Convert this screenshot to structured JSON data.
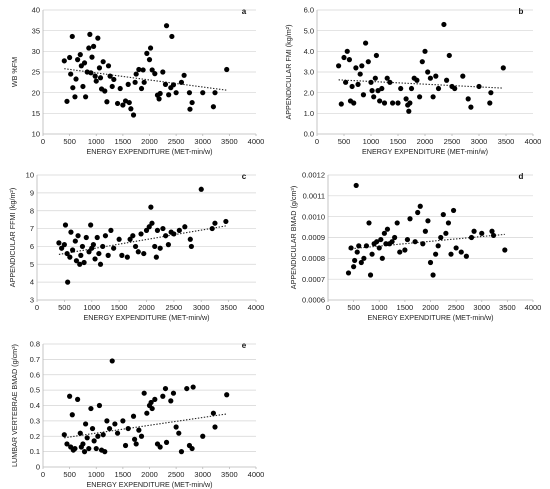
{
  "figure": {
    "colors": {
      "points": "#000000",
      "trend": "#222222",
      "axis": "#b8b8b8",
      "grid": "#d4d4d4"
    }
  },
  "chart_data": [
    {
      "type": "scatter",
      "panel": "a",
      "xlabel": "ENERGY EXPENDITURE (MET-min/w)",
      "ylabel": "WB %FM",
      "xlim": [
        0,
        4000
      ],
      "ylim": [
        10,
        40
      ],
      "xticks": [
        "0",
        "500",
        "1000",
        "1500",
        "2000",
        "2500",
        "3000",
        "3500",
        "4000"
      ],
      "yticks": [
        "10",
        "15",
        "20",
        "25",
        "30",
        "35",
        "40"
      ],
      "grid": "horizontal",
      "trend": {
        "x": [
          400,
          3450
        ],
        "y": [
          25.8,
          20.6
        ]
      },
      "points": [
        [
          400,
          27.7
        ],
        [
          450,
          17.9
        ],
        [
          500,
          28.5
        ],
        [
          520,
          24.5
        ],
        [
          550,
          33.6
        ],
        [
          560,
          21.2
        ],
        [
          600,
          19.0
        ],
        [
          620,
          23.3
        ],
        [
          650,
          28.0
        ],
        [
          700,
          29.2
        ],
        [
          720,
          26.5
        ],
        [
          750,
          21.5
        ],
        [
          780,
          27.2
        ],
        [
          800,
          19.0
        ],
        [
          830,
          25.0
        ],
        [
          860,
          30.8
        ],
        [
          880,
          34.1
        ],
        [
          900,
          24.8
        ],
        [
          920,
          28.6
        ],
        [
          950,
          31.2
        ],
        [
          980,
          24.0
        ],
        [
          1000,
          22.8
        ],
        [
          1030,
          33.2
        ],
        [
          1060,
          26.0
        ],
        [
          1080,
          23.6
        ],
        [
          1100,
          20.9
        ],
        [
          1130,
          27.5
        ],
        [
          1160,
          20.4
        ],
        [
          1200,
          17.8
        ],
        [
          1230,
          26.5
        ],
        [
          1260,
          24.0
        ],
        [
          1300,
          21.5
        ],
        [
          1330,
          23.2
        ],
        [
          1400,
          17.4
        ],
        [
          1450,
          21.0
        ],
        [
          1500,
          17.0
        ],
        [
          1550,
          18.0
        ],
        [
          1600,
          22.0
        ],
        [
          1620,
          17.6
        ],
        [
          1650,
          16.1
        ],
        [
          1700,
          14.6
        ],
        [
          1730,
          22.5
        ],
        [
          1750,
          24.5
        ],
        [
          1800,
          25.6
        ],
        [
          1850,
          21.0
        ],
        [
          1880,
          25.5
        ],
        [
          1900,
          22.5
        ],
        [
          1950,
          29.5
        ],
        [
          2000,
          28.0
        ],
        [
          2020,
          30.8
        ],
        [
          2050,
          25.5
        ],
        [
          2100,
          24.6
        ],
        [
          2150,
          19.4
        ],
        [
          2180,
          18.5
        ],
        [
          2200,
          19.8
        ],
        [
          2250,
          25.0
        ],
        [
          2300,
          22.0
        ],
        [
          2320,
          36.2
        ],
        [
          2360,
          19.5
        ],
        [
          2400,
          21.2
        ],
        [
          2420,
          33.6
        ],
        [
          2450,
          21.9
        ],
        [
          2500,
          20.0
        ],
        [
          2600,
          22.5
        ],
        [
          2650,
          24.2
        ],
        [
          2750,
          20.0
        ],
        [
          2760,
          16.0
        ],
        [
          2800,
          17.6
        ],
        [
          3000,
          20.0
        ],
        [
          3200,
          16.6
        ],
        [
          3230,
          20.0
        ],
        [
          3450,
          25.6
        ]
      ]
    },
    {
      "type": "scatter",
      "panel": "b",
      "xlabel": "ENERGY EXPENDITURE (MET-min/w)",
      "ylabel": "APPENDICULAR FMI (kg/m²)",
      "xlim": [
        0,
        4000
      ],
      "ylim": [
        0,
        6
      ],
      "xticks": [
        "0",
        "500",
        "1000",
        "1500",
        "2000",
        "2500",
        "3000",
        "3500",
        "4000"
      ],
      "yticks": [
        "0.0",
        "1.0",
        "2.0",
        "3.0",
        "4.0",
        "5.0",
        "6.0"
      ],
      "grid": "horizontal",
      "trend": {
        "x": [
          400,
          3450
        ],
        "y": [
          2.62,
          2.22
        ]
      },
      "points": [
        [
          400,
          3.3
        ],
        [
          450,
          1.45
        ],
        [
          500,
          3.7
        ],
        [
          530,
          2.5
        ],
        [
          560,
          4.0
        ],
        [
          600,
          3.6
        ],
        [
          620,
          1.6
        ],
        [
          650,
          2.3
        ],
        [
          680,
          1.5
        ],
        [
          720,
          3.2
        ],
        [
          760,
          2.4
        ],
        [
          800,
          2.9
        ],
        [
          830,
          3.3
        ],
        [
          860,
          1.9
        ],
        [
          900,
          4.4
        ],
        [
          950,
          3.5
        ],
        [
          1000,
          2.5
        ],
        [
          1020,
          2.1
        ],
        [
          1050,
          1.8
        ],
        [
          1080,
          2.7
        ],
        [
          1100,
          3.8
        ],
        [
          1130,
          2.1
        ],
        [
          1160,
          1.6
        ],
        [
          1200,
          2.2
        ],
        [
          1250,
          1.5
        ],
        [
          1300,
          2.7
        ],
        [
          1350,
          2.5
        ],
        [
          1400,
          1.5
        ],
        [
          1500,
          1.5
        ],
        [
          1550,
          2.2
        ],
        [
          1650,
          1.7
        ],
        [
          1680,
          1.4
        ],
        [
          1700,
          1.1
        ],
        [
          1720,
          1.5
        ],
        [
          1750,
          2.2
        ],
        [
          1800,
          2.7
        ],
        [
          1850,
          2.6
        ],
        [
          1900,
          1.8
        ],
        [
          1950,
          3.5
        ],
        [
          2000,
          4.0
        ],
        [
          2050,
          3.0
        ],
        [
          2100,
          2.7
        ],
        [
          2150,
          1.8
        ],
        [
          2200,
          2.8
        ],
        [
          2250,
          2.2
        ],
        [
          2350,
          5.3
        ],
        [
          2400,
          2.6
        ],
        [
          2450,
          3.8
        ],
        [
          2500,
          2.3
        ],
        [
          2550,
          2.2
        ],
        [
          2700,
          2.8
        ],
        [
          2800,
          1.7
        ],
        [
          2850,
          1.3
        ],
        [
          3000,
          2.3
        ],
        [
          3200,
          1.5
        ],
        [
          3220,
          2.0
        ],
        [
          3450,
          3.2
        ]
      ]
    },
    {
      "type": "scatter",
      "panel": "c",
      "xlabel": "ENERGY EXPENDITURE (MET-min/w)",
      "ylabel": "APPENDICULAR FFMI (kg/m²)",
      "xlim": [
        0,
        4000
      ],
      "ylim": [
        3,
        10
      ],
      "xticks": [
        "0",
        "500",
        "1000",
        "1500",
        "2000",
        "2500",
        "3000",
        "3500",
        "4000"
      ],
      "yticks": [
        "3",
        "4",
        "5",
        "6",
        "7",
        "8",
        "9",
        "10"
      ],
      "grid": "horizontal",
      "trend": {
        "x": [
          400,
          3450
        ],
        "y": [
          5.55,
          7.15
        ]
      },
      "points": [
        [
          400,
          6.2
        ],
        [
          450,
          5.9
        ],
        [
          500,
          6.1
        ],
        [
          520,
          7.2
        ],
        [
          550,
          5.6
        ],
        [
          560,
          4.0
        ],
        [
          600,
          5.4
        ],
        [
          620,
          6.8
        ],
        [
          650,
          5.8
        ],
        [
          700,
          6.3
        ],
        [
          720,
          5.2
        ],
        [
          750,
          6.6
        ],
        [
          780,
          5.0
        ],
        [
          800,
          5.5
        ],
        [
          830,
          6.0
        ],
        [
          860,
          5.1
        ],
        [
          900,
          6.5
        ],
        [
          950,
          5.7
        ],
        [
          980,
          7.2
        ],
        [
          1000,
          5.9
        ],
        [
          1030,
          6.1
        ],
        [
          1060,
          5.3
        ],
        [
          1100,
          6.5
        ],
        [
          1130,
          5.6
        ],
        [
          1160,
          5.0
        ],
        [
          1200,
          6.0
        ],
        [
          1250,
          6.6
        ],
        [
          1300,
          5.5
        ],
        [
          1350,
          6.9
        ],
        [
          1400,
          5.9
        ],
        [
          1500,
          6.4
        ],
        [
          1550,
          5.5
        ],
        [
          1650,
          5.4
        ],
        [
          1700,
          6.4
        ],
        [
          1750,
          6.6
        ],
        [
          1800,
          6.0
        ],
        [
          1850,
          5.7
        ],
        [
          1900,
          6.7
        ],
        [
          1950,
          5.6
        ],
        [
          2000,
          6.9
        ],
        [
          2050,
          7.1
        ],
        [
          2080,
          8.2
        ],
        [
          2100,
          7.3
        ],
        [
          2150,
          6.0
        ],
        [
          2180,
          5.4
        ],
        [
          2200,
          6.9
        ],
        [
          2250,
          5.9
        ],
        [
          2300,
          7.0
        ],
        [
          2350,
          6.6
        ],
        [
          2400,
          6.1
        ],
        [
          2450,
          6.8
        ],
        [
          2500,
          6.7
        ],
        [
          2600,
          6.9
        ],
        [
          2700,
          7.1
        ],
        [
          2800,
          6.4
        ],
        [
          2820,
          6.0
        ],
        [
          3000,
          9.2
        ],
        [
          3200,
          7.0
        ],
        [
          3250,
          7.3
        ],
        [
          3450,
          7.4
        ]
      ]
    },
    {
      "type": "scatter",
      "panel": "d",
      "xlabel": "ENERGY EXPENDITURE (MET-min/w)",
      "ylabel": "APPENDICULAR BMAD (g/cm³)",
      "xlim": [
        0,
        4000
      ],
      "ylim": [
        0.0006,
        0.0012
      ],
      "xticks": [
        "0",
        "500",
        "1000",
        "1500",
        "2000",
        "2500",
        "3000",
        "3500",
        "4000"
      ],
      "yticks": [
        "0.0006",
        "0.0007",
        "0.0008",
        "0.0009",
        "0.0010",
        "0.0011",
        "0.0012"
      ],
      "grid": "horizontal",
      "trend": {
        "x": [
          400,
          3450
        ],
        "y": [
          0.000845,
          0.000915
        ]
      },
      "points": [
        [
          400,
          0.00073
        ],
        [
          450,
          0.00085
        ],
        [
          500,
          0.00076
        ],
        [
          520,
          0.00079
        ],
        [
          550,
          0.00115
        ],
        [
          570,
          0.00083
        ],
        [
          600,
          0.00086
        ],
        [
          650,
          0.00078
        ],
        [
          700,
          0.0008
        ],
        [
          750,
          0.00086
        ],
        [
          800,
          0.00097
        ],
        [
          830,
          0.00072
        ],
        [
          860,
          0.00082
        ],
        [
          900,
          0.00087
        ],
        [
          950,
          0.00088
        ],
        [
          1000,
          0.00085
        ],
        [
          1030,
          0.00089
        ],
        [
          1060,
          0.0008
        ],
        [
          1100,
          0.00092
        ],
        [
          1130,
          0.00087
        ],
        [
          1160,
          0.00094
        ],
        [
          1200,
          0.00087
        ],
        [
          1250,
          0.00088
        ],
        [
          1300,
          0.0009
        ],
        [
          1350,
          0.00097
        ],
        [
          1400,
          0.00083
        ],
        [
          1500,
          0.00084
        ],
        [
          1550,
          0.00089
        ],
        [
          1600,
          0.00099
        ],
        [
          1700,
          0.00088
        ],
        [
          1750,
          0.00102
        ],
        [
          1800,
          0.00105
        ],
        [
          1850,
          0.00087
        ],
        [
          1900,
          0.00093
        ],
        [
          1950,
          0.00098
        ],
        [
          2000,
          0.00078
        ],
        [
          2050,
          0.00072
        ],
        [
          2100,
          0.00082
        ],
        [
          2150,
          0.00086
        ],
        [
          2200,
          0.0009
        ],
        [
          2250,
          0.00101
        ],
        [
          2300,
          0.00092
        ],
        [
          2350,
          0.00097
        ],
        [
          2400,
          0.00082
        ],
        [
          2450,
          0.00103
        ],
        [
          2500,
          0.00085
        ],
        [
          2600,
          0.00083
        ],
        [
          2700,
          0.00081
        ],
        [
          2800,
          0.0009
        ],
        [
          2850,
          0.00093
        ],
        [
          3000,
          0.00092
        ],
        [
          3200,
          0.00093
        ],
        [
          3230,
          0.00091
        ],
        [
          3450,
          0.00084
        ]
      ]
    },
    {
      "type": "scatter",
      "panel": "e",
      "xlabel": "ENERGY EXPENDITURE (MET-min/w)",
      "ylabel": "LUMBAR VERTEBRAE BMAD (g/cm³)",
      "xlim": [
        0,
        4000
      ],
      "ylim": [
        0,
        0.8
      ],
      "xticks": [
        "0",
        "500",
        "1000",
        "1500",
        "2000",
        "2500",
        "3000",
        "3500",
        "4000"
      ],
      "yticks": [
        "0",
        "0.1",
        "0.2",
        "0.3",
        "0.4",
        "0.5",
        "0.6",
        "0.7",
        "0.8"
      ],
      "grid": "horizontal",
      "trend": {
        "x": [
          400,
          3450
        ],
        "y": [
          0.19,
          0.345
        ]
      },
      "points": [
        [
          400,
          0.21
        ],
        [
          450,
          0.15
        ],
        [
          500,
          0.46
        ],
        [
          520,
          0.13
        ],
        [
          550,
          0.34
        ],
        [
          570,
          0.11
        ],
        [
          600,
          0.12
        ],
        [
          650,
          0.44
        ],
        [
          700,
          0.22
        ],
        [
          720,
          0.13
        ],
        [
          750,
          0.15
        ],
        [
          780,
          0.1
        ],
        [
          800,
          0.28
        ],
        [
          830,
          0.19
        ],
        [
          860,
          0.12
        ],
        [
          900,
          0.38
        ],
        [
          930,
          0.25
        ],
        [
          960,
          0.17
        ],
        [
          1000,
          0.12
        ],
        [
          1030,
          0.2
        ],
        [
          1060,
          0.4
        ],
        [
          1100,
          0.11
        ],
        [
          1130,
          0.21
        ],
        [
          1160,
          0.1
        ],
        [
          1200,
          0.3
        ],
        [
          1250,
          0.25
        ],
        [
          1300,
          0.69
        ],
        [
          1350,
          0.28
        ],
        [
          1400,
          0.22
        ],
        [
          1500,
          0.3
        ],
        [
          1550,
          0.14
        ],
        [
          1600,
          0.25
        ],
        [
          1700,
          0.33
        ],
        [
          1720,
          0.18
        ],
        [
          1750,
          0.15
        ],
        [
          1800,
          0.24
        ],
        [
          1850,
          0.2
        ],
        [
          1900,
          0.48
        ],
        [
          1950,
          0.35
        ],
        [
          2000,
          0.4
        ],
        [
          2030,
          0.42
        ],
        [
          2050,
          0.38
        ],
        [
          2100,
          0.44
        ],
        [
          2150,
          0.15
        ],
        [
          2200,
          0.13
        ],
        [
          2250,
          0.46
        ],
        [
          2300,
          0.51
        ],
        [
          2320,
          0.16
        ],
        [
          2400,
          0.43
        ],
        [
          2450,
          0.48
        ],
        [
          2500,
          0.26
        ],
        [
          2550,
          0.22
        ],
        [
          2600,
          0.1
        ],
        [
          2700,
          0.51
        ],
        [
          2750,
          0.14
        ],
        [
          2800,
          0.12
        ],
        [
          2820,
          0.52
        ],
        [
          3000,
          0.2
        ],
        [
          3200,
          0.35
        ],
        [
          3230,
          0.26
        ],
        [
          3450,
          0.47
        ]
      ]
    }
  ]
}
